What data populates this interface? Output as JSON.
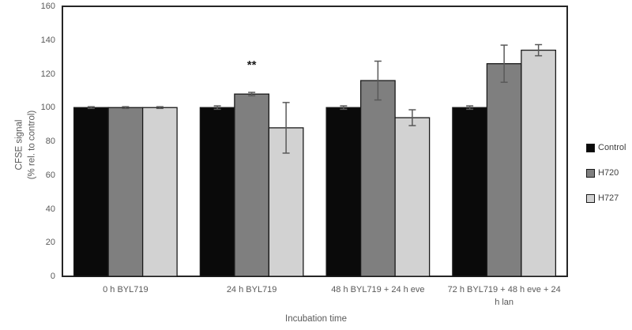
{
  "chart_data": {
    "type": "bar",
    "title": "",
    "xlabel": "Incubation time",
    "ylabel_line1": "CFSE signal",
    "ylabel_line2": "(% rel. to control)",
    "categories": [
      "0 h BYL719",
      "24 h BYL719",
      "48 h BYL719 + 24 h eve",
      "72 h BYL719 + 48 h eve + 24 h lan"
    ],
    "series": [
      {
        "name": "Control",
        "color": "#0a0a0a",
        "values": [
          100,
          100,
          100,
          100
        ],
        "errors": [
          0.5,
          1,
          1,
          1
        ]
      },
      {
        "name": "H720",
        "color": "#7f7f7f",
        "values": [
          100,
          108,
          116,
          126
        ],
        "errors": [
          0.5,
          1,
          11.5,
          11
        ]
      },
      {
        "name": "H727",
        "color": "#d2d2d2",
        "values": [
          100,
          88,
          94,
          134
        ],
        "errors": [
          0.5,
          15,
          4.7,
          3.3
        ]
      }
    ],
    "ylim": [
      0,
      160
    ],
    "ytick_step": 20,
    "grid": false,
    "legend_position": "right",
    "annotation": {
      "text": "**",
      "group_index": 1,
      "series_index": 1
    },
    "colors": {
      "bar_border": "#1a1a1a",
      "error_bar": "#595959",
      "axis_text": "#595959",
      "plot_border": "#262626"
    }
  }
}
